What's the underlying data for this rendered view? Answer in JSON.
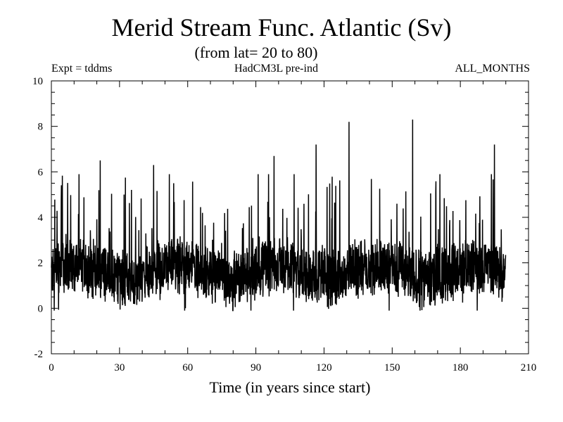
{
  "chart_data": {
    "type": "line",
    "title": "Merid Stream Func. Atlantic (Sv)",
    "subtitle": "(from lat= 20 to 80)",
    "header_left": "Expt = tddms",
    "header_center": "HadCM3L pre-ind",
    "header_right": "ALL_MONTHS",
    "xlabel": "Time (in years since start)",
    "ylabel": "",
    "xlim": [
      0,
      210
    ],
    "ylim": [
      -2,
      10
    ],
    "xticks": [
      0,
      30,
      60,
      90,
      120,
      150,
      180,
      210
    ],
    "xtick_labels": [
      "0",
      "30",
      "60",
      "90",
      "120",
      "150",
      "180",
      "210"
    ],
    "yticks": [
      -2,
      0,
      2,
      4,
      6,
      8,
      10
    ],
    "ytick_labels": [
      "-2",
      "0",
      "2",
      "4",
      "6",
      "8",
      "10"
    ],
    "grid": false,
    "series": [
      {
        "color": "#000000",
        "sampling": "monthly, years 0 to 199",
        "mean": 1.6,
        "approx_range": [
          -0.1,
          8.3
        ],
        "notable_peaks": [
          {
            "x": 21.5,
            "y": 6.5
          },
          {
            "x": 45,
            "y": 6.3
          },
          {
            "x": 98,
            "y": 6.7
          },
          {
            "x": 116.5,
            "y": 7.2
          },
          {
            "x": 131,
            "y": 8.2
          },
          {
            "x": 159,
            "y": 8.3
          },
          {
            "x": 195,
            "y": 7.2
          }
        ]
      }
    ]
  }
}
